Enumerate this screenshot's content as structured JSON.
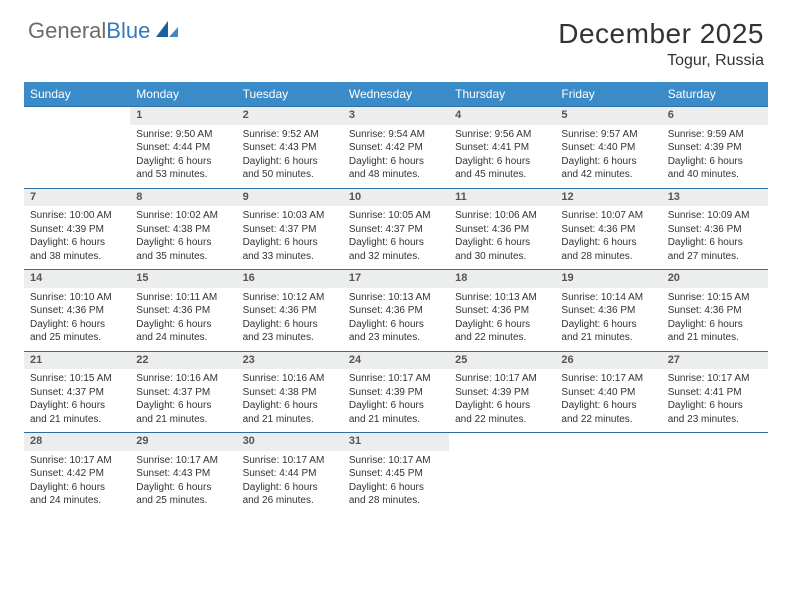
{
  "brand": {
    "part1": "General",
    "part2": "Blue"
  },
  "title": "December 2025",
  "location": "Togur, Russia",
  "colors": {
    "header_bg": "#3b8bc9",
    "header_text": "#ffffff",
    "daynum_bg": "#eceded",
    "row_divider": "#2f6fa8",
    "body_text": "#333333",
    "logo_gray": "#6b6b6b",
    "logo_blue": "#2f7bbf"
  },
  "weekdays": [
    "Sunday",
    "Monday",
    "Tuesday",
    "Wednesday",
    "Thursday",
    "Friday",
    "Saturday"
  ],
  "weeks": [
    {
      "nums": [
        "",
        "1",
        "2",
        "3",
        "4",
        "5",
        "6"
      ],
      "cells": [
        null,
        {
          "sunrise": "Sunrise: 9:50 AM",
          "sunset": "Sunset: 4:44 PM",
          "day1": "Daylight: 6 hours",
          "day2": "and 53 minutes."
        },
        {
          "sunrise": "Sunrise: 9:52 AM",
          "sunset": "Sunset: 4:43 PM",
          "day1": "Daylight: 6 hours",
          "day2": "and 50 minutes."
        },
        {
          "sunrise": "Sunrise: 9:54 AM",
          "sunset": "Sunset: 4:42 PM",
          "day1": "Daylight: 6 hours",
          "day2": "and 48 minutes."
        },
        {
          "sunrise": "Sunrise: 9:56 AM",
          "sunset": "Sunset: 4:41 PM",
          "day1": "Daylight: 6 hours",
          "day2": "and 45 minutes."
        },
        {
          "sunrise": "Sunrise: 9:57 AM",
          "sunset": "Sunset: 4:40 PM",
          "day1": "Daylight: 6 hours",
          "day2": "and 42 minutes."
        },
        {
          "sunrise": "Sunrise: 9:59 AM",
          "sunset": "Sunset: 4:39 PM",
          "day1": "Daylight: 6 hours",
          "day2": "and 40 minutes."
        }
      ]
    },
    {
      "nums": [
        "7",
        "8",
        "9",
        "10",
        "11",
        "12",
        "13"
      ],
      "cells": [
        {
          "sunrise": "Sunrise: 10:00 AM",
          "sunset": "Sunset: 4:39 PM",
          "day1": "Daylight: 6 hours",
          "day2": "and 38 minutes."
        },
        {
          "sunrise": "Sunrise: 10:02 AM",
          "sunset": "Sunset: 4:38 PM",
          "day1": "Daylight: 6 hours",
          "day2": "and 35 minutes."
        },
        {
          "sunrise": "Sunrise: 10:03 AM",
          "sunset": "Sunset: 4:37 PM",
          "day1": "Daylight: 6 hours",
          "day2": "and 33 minutes."
        },
        {
          "sunrise": "Sunrise: 10:05 AM",
          "sunset": "Sunset: 4:37 PM",
          "day1": "Daylight: 6 hours",
          "day2": "and 32 minutes."
        },
        {
          "sunrise": "Sunrise: 10:06 AM",
          "sunset": "Sunset: 4:36 PM",
          "day1": "Daylight: 6 hours",
          "day2": "and 30 minutes."
        },
        {
          "sunrise": "Sunrise: 10:07 AM",
          "sunset": "Sunset: 4:36 PM",
          "day1": "Daylight: 6 hours",
          "day2": "and 28 minutes."
        },
        {
          "sunrise": "Sunrise: 10:09 AM",
          "sunset": "Sunset: 4:36 PM",
          "day1": "Daylight: 6 hours",
          "day2": "and 27 minutes."
        }
      ]
    },
    {
      "nums": [
        "14",
        "15",
        "16",
        "17",
        "18",
        "19",
        "20"
      ],
      "cells": [
        {
          "sunrise": "Sunrise: 10:10 AM",
          "sunset": "Sunset: 4:36 PM",
          "day1": "Daylight: 6 hours",
          "day2": "and 25 minutes."
        },
        {
          "sunrise": "Sunrise: 10:11 AM",
          "sunset": "Sunset: 4:36 PM",
          "day1": "Daylight: 6 hours",
          "day2": "and 24 minutes."
        },
        {
          "sunrise": "Sunrise: 10:12 AM",
          "sunset": "Sunset: 4:36 PM",
          "day1": "Daylight: 6 hours",
          "day2": "and 23 minutes."
        },
        {
          "sunrise": "Sunrise: 10:13 AM",
          "sunset": "Sunset: 4:36 PM",
          "day1": "Daylight: 6 hours",
          "day2": "and 23 minutes."
        },
        {
          "sunrise": "Sunrise: 10:13 AM",
          "sunset": "Sunset: 4:36 PM",
          "day1": "Daylight: 6 hours",
          "day2": "and 22 minutes."
        },
        {
          "sunrise": "Sunrise: 10:14 AM",
          "sunset": "Sunset: 4:36 PM",
          "day1": "Daylight: 6 hours",
          "day2": "and 21 minutes."
        },
        {
          "sunrise": "Sunrise: 10:15 AM",
          "sunset": "Sunset: 4:36 PM",
          "day1": "Daylight: 6 hours",
          "day2": "and 21 minutes."
        }
      ]
    },
    {
      "nums": [
        "21",
        "22",
        "23",
        "24",
        "25",
        "26",
        "27"
      ],
      "cells": [
        {
          "sunrise": "Sunrise: 10:15 AM",
          "sunset": "Sunset: 4:37 PM",
          "day1": "Daylight: 6 hours",
          "day2": "and 21 minutes."
        },
        {
          "sunrise": "Sunrise: 10:16 AM",
          "sunset": "Sunset: 4:37 PM",
          "day1": "Daylight: 6 hours",
          "day2": "and 21 minutes."
        },
        {
          "sunrise": "Sunrise: 10:16 AM",
          "sunset": "Sunset: 4:38 PM",
          "day1": "Daylight: 6 hours",
          "day2": "and 21 minutes."
        },
        {
          "sunrise": "Sunrise: 10:17 AM",
          "sunset": "Sunset: 4:39 PM",
          "day1": "Daylight: 6 hours",
          "day2": "and 21 minutes."
        },
        {
          "sunrise": "Sunrise: 10:17 AM",
          "sunset": "Sunset: 4:39 PM",
          "day1": "Daylight: 6 hours",
          "day2": "and 22 minutes."
        },
        {
          "sunrise": "Sunrise: 10:17 AM",
          "sunset": "Sunset: 4:40 PM",
          "day1": "Daylight: 6 hours",
          "day2": "and 22 minutes."
        },
        {
          "sunrise": "Sunrise: 10:17 AM",
          "sunset": "Sunset: 4:41 PM",
          "day1": "Daylight: 6 hours",
          "day2": "and 23 minutes."
        }
      ]
    },
    {
      "nums": [
        "28",
        "29",
        "30",
        "31",
        "",
        "",
        ""
      ],
      "cells": [
        {
          "sunrise": "Sunrise: 10:17 AM",
          "sunset": "Sunset: 4:42 PM",
          "day1": "Daylight: 6 hours",
          "day2": "and 24 minutes."
        },
        {
          "sunrise": "Sunrise: 10:17 AM",
          "sunset": "Sunset: 4:43 PM",
          "day1": "Daylight: 6 hours",
          "day2": "and 25 minutes."
        },
        {
          "sunrise": "Sunrise: 10:17 AM",
          "sunset": "Sunset: 4:44 PM",
          "day1": "Daylight: 6 hours",
          "day2": "and 26 minutes."
        },
        {
          "sunrise": "Sunrise: 10:17 AM",
          "sunset": "Sunset: 4:45 PM",
          "day1": "Daylight: 6 hours",
          "day2": "and 28 minutes."
        },
        null,
        null,
        null
      ]
    }
  ]
}
